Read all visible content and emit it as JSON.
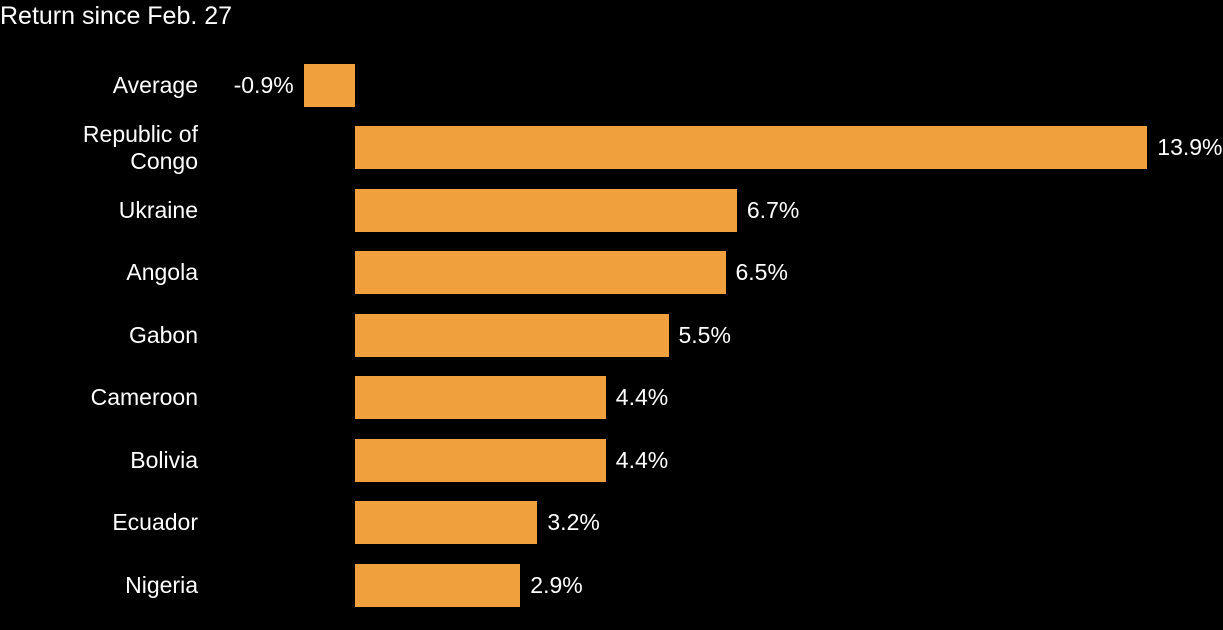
{
  "chart_data": {
    "type": "bar",
    "orientation": "horizontal",
    "title": "Return since Feb. 27",
    "categories": [
      "Average",
      "Republic of Congo",
      "Ukraine",
      "Angola",
      "Gabon",
      "Cameroon",
      "Bolivia",
      "Ecuador",
      "Nigeria"
    ],
    "values": [
      -0.9,
      13.9,
      6.7,
      6.5,
      5.5,
      4.4,
      4.4,
      3.2,
      2.9
    ],
    "value_labels": [
      "-0.9%",
      "13.9%",
      "6.7%",
      "6.5%",
      "5.5%",
      "4.4%",
      "4.4%",
      "3.2%",
      "2.9%"
    ],
    "color": "#f0a03c"
  }
}
